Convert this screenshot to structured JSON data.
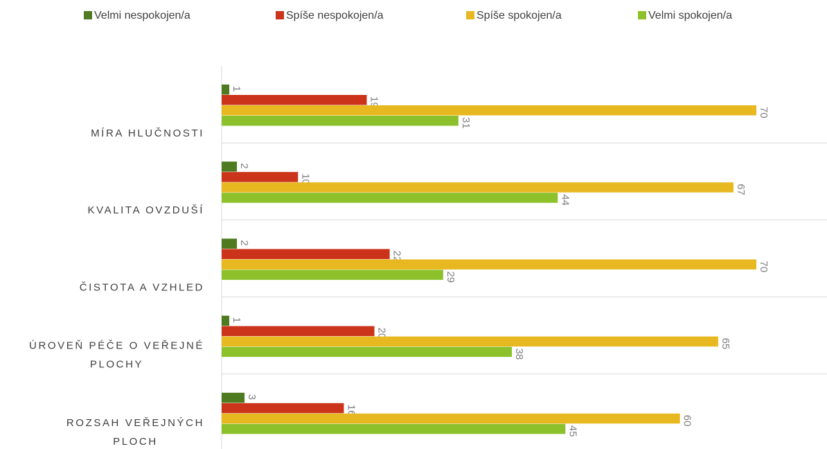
{
  "chart_data": {
    "type": "hbar",
    "categories": [
      "MÍRA HLUČNOSTI",
      "KVALITA OVZDUŠÍ",
      "ČISTOTA A VZHLED",
      "ÚROVEŇ PÉČE O VEŘEJNÉ PLOCHY",
      "ROZSAH VEŘEJNÝCH PLOCH"
    ],
    "series": [
      {
        "name": "Velmi nespokojen/a",
        "color": "#4e7b1f",
        "values": [
          1,
          2,
          2,
          1,
          3
        ]
      },
      {
        "name": "Spíše nespokojen/a",
        "color": "#cb341a",
        "values": [
          19,
          10,
          22,
          20,
          16
        ]
      },
      {
        "name": "Spíše spokojen/a",
        "color": "#e8b820",
        "values": [
          70,
          67,
          70,
          65,
          60
        ]
      },
      {
        "name": "Velmi spokojen/a",
        "color": "#8cc12b",
        "values": [
          31,
          44,
          29,
          38,
          45
        ]
      }
    ],
    "legend": "top"
  }
}
